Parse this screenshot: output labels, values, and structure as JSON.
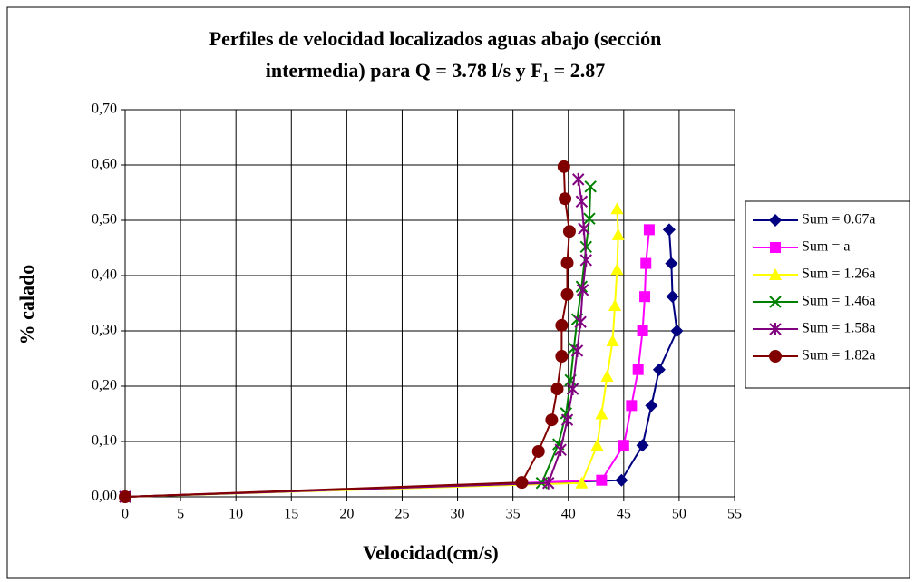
{
  "chart_data": {
    "type": "line",
    "title": [
      "Perfiles de velocidad localizados aguas abajo (sección",
      "intermedia) para Q = 3.78 l/s y F₁ = 2.87"
    ],
    "x_label": "Velocidad(cm/s)",
    "y_label": "% calado",
    "xlim": [
      0,
      55
    ],
    "xticks": [
      0,
      5,
      10,
      15,
      20,
      25,
      30,
      35,
      40,
      45,
      50,
      55
    ],
    "ylim": [
      0,
      0.7
    ],
    "yticks": [
      {
        "value": 0,
        "label": "0,00"
      },
      {
        "value": 0.1,
        "label": "0,10"
      },
      {
        "value": 0.2,
        "label": "0,20"
      },
      {
        "value": 0.3,
        "label": "0,30"
      },
      {
        "value": 0.4,
        "label": "0,40"
      },
      {
        "value": 0.5,
        "label": "0,50"
      },
      {
        "value": 0.6,
        "label": "0,60"
      },
      {
        "value": 0.7,
        "label": "0,70"
      }
    ],
    "grid": true,
    "legend": "right",
    "series": [
      {
        "name": "Sum = 0.67a",
        "color": "#000080",
        "marker": "diamond",
        "x": [
          0,
          44.8,
          46.7,
          47.5,
          48.2,
          49.8,
          49.4,
          49.3,
          49.1
        ],
        "values": [
          0,
          0.03,
          0.093,
          0.165,
          0.23,
          0.3,
          0.362,
          0.422,
          0.483
        ]
      },
      {
        "name": "Sum = a",
        "color": "#ff00ff",
        "marker": "square",
        "x": [
          0,
          43.0,
          45.0,
          45.7,
          46.3,
          46.7,
          46.9,
          47.0,
          47.3
        ],
        "values": [
          0,
          0.03,
          0.093,
          0.165,
          0.23,
          0.3,
          0.362,
          0.422,
          0.483
        ]
      },
      {
        "name": "Sum = 1.26a",
        "color": "#ffff00",
        "marker": "triangle",
        "x": [
          0,
          41.2,
          42.6,
          43.0,
          43.5,
          44.0,
          44.2,
          44.4,
          44.5,
          44.4
        ],
        "values": [
          0,
          0.025,
          0.093,
          0.15,
          0.218,
          0.282,
          0.346,
          0.411,
          0.474,
          0.521
        ]
      },
      {
        "name": "Sum = 1.46a",
        "color": "#008000",
        "marker": "x",
        "x": [
          0,
          37.6,
          39.1,
          39.8,
          40.2,
          40.5,
          40.8,
          41.2,
          41.6,
          41.9,
          42.0
        ],
        "values": [
          0,
          0.025,
          0.095,
          0.151,
          0.211,
          0.269,
          0.321,
          0.38,
          0.452,
          0.503,
          0.561
        ]
      },
      {
        "name": "Sum = 1.58a",
        "color": "#800080",
        "marker": "asterisk",
        "x": [
          0,
          38.2,
          39.3,
          39.9,
          40.4,
          40.8,
          41.1,
          41.3,
          41.6,
          41.4,
          41.2,
          40.9
        ],
        "values": [
          0,
          0.025,
          0.085,
          0.139,
          0.195,
          0.264,
          0.316,
          0.374,
          0.428,
          0.485,
          0.534,
          0.574
        ]
      },
      {
        "name": "Sum = 1.82a",
        "color": "#800000",
        "marker": "circle",
        "x": [
          0,
          35.8,
          37.3,
          38.5,
          39.0,
          39.4,
          39.4,
          39.9,
          39.9,
          40.1,
          39.7,
          39.6
        ],
        "values": [
          0,
          0.026,
          0.082,
          0.139,
          0.195,
          0.254,
          0.31,
          0.366,
          0.423,
          0.48,
          0.539,
          0.597
        ]
      }
    ]
  }
}
